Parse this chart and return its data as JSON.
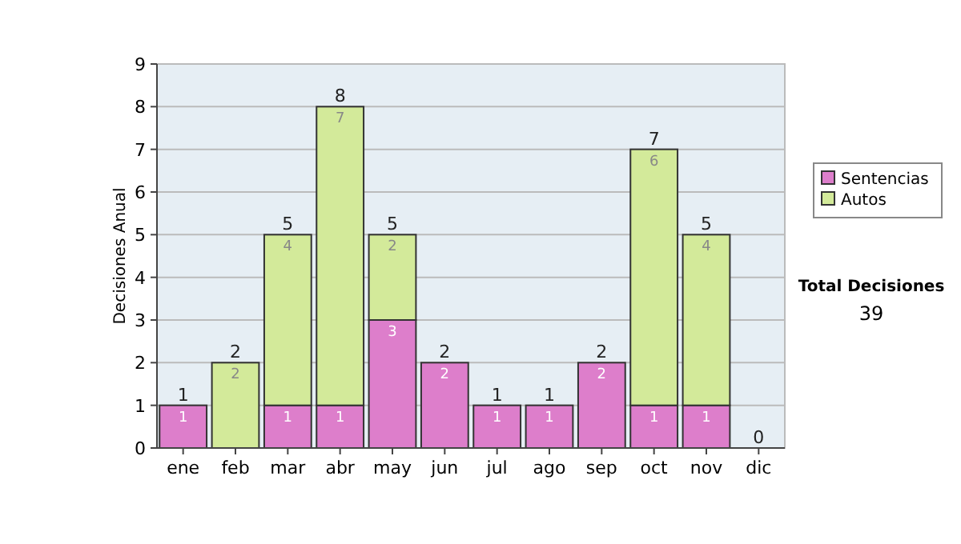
{
  "chart_data": {
    "type": "bar",
    "stacked": true,
    "ylabel": "Decisiones Anual",
    "categories": [
      "ene",
      "feb",
      "mar",
      "abr",
      "may",
      "jun",
      "jul",
      "ago",
      "sep",
      "oct",
      "nov",
      "dic"
    ],
    "series": [
      {
        "name": "Sentencias",
        "color": "#dd7ecb",
        "values": [
          1,
          0,
          1,
          1,
          3,
          2,
          1,
          1,
          2,
          1,
          1,
          0
        ],
        "value_labels": [
          "1",
          null,
          "1",
          "1",
          "3",
          "2",
          "1",
          "1",
          "2",
          "1",
          "1",
          null
        ]
      },
      {
        "name": "Autos",
        "color": "#d3ea9a",
        "values": [
          0,
          2,
          4,
          7,
          2,
          0,
          0,
          0,
          0,
          6,
          4,
          0
        ],
        "value_labels": [
          null,
          "2",
          "4",
          "7",
          "2",
          null,
          null,
          null,
          null,
          "6",
          "4",
          null
        ]
      }
    ],
    "totals": [
      "1",
      "2",
      "5",
      "8",
      "5",
      "2",
      "1",
      "1",
      "2",
      "7",
      "5",
      "0"
    ],
    "ylim": [
      0,
      9
    ],
    "yticks": [
      0,
      1,
      2,
      3,
      4,
      5,
      6,
      7,
      8,
      9
    ],
    "grid": "y",
    "legend": "right",
    "annotations": [
      "Total Decisiones",
      "39"
    ]
  }
}
